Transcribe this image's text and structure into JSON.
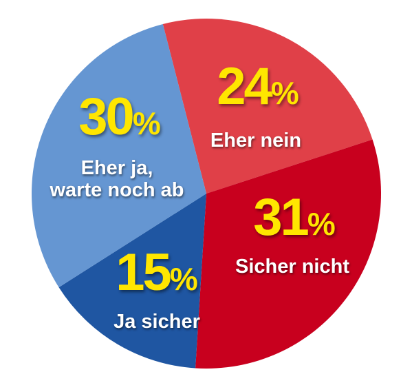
{
  "chart_data": {
    "type": "pie",
    "slices": [
      {
        "label": "Eher nein",
        "value": 24,
        "value_text": "24",
        "unit": "%",
        "color": "#e04048"
      },
      {
        "label": "Sicher nicht",
        "value": 31,
        "value_text": "31",
        "unit": "%",
        "color": "#c8001e"
      },
      {
        "label": "Ja sicher",
        "value": 15,
        "value_text": "15",
        "unit": "%",
        "color": "#1f56a2"
      },
      {
        "label": "Eher ja,\nwarte noch ab",
        "value": 30,
        "value_text": "30",
        "unit": "%",
        "color": "#6596d2"
      }
    ],
    "label_color": "#ffe600",
    "category_color": "#ffffff"
  }
}
